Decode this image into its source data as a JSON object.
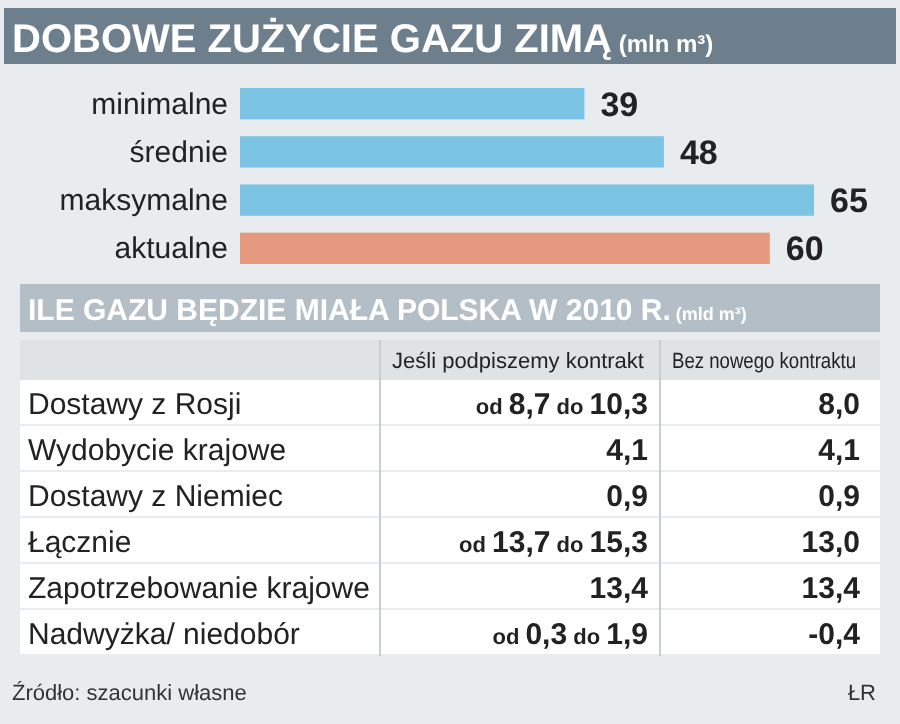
{
  "chart_data": [
    {
      "type": "bar",
      "orientation": "horizontal",
      "title": "DOBOWE ZUŻYCIE GAZU ZIMĄ (mln m³)",
      "categories": [
        "minimalne",
        "średnie",
        "maksymalne",
        "aktualne"
      ],
      "values": [
        39,
        48,
        65,
        60
      ],
      "colors": [
        "#7cc4e4",
        "#7cc4e4",
        "#7cc4e4",
        "#e59a80"
      ],
      "data_labels": true,
      "relative": false
    },
    {
      "type": "other",
      "title": "ILE GAZU BĘDZIE MIAŁA POLSKA W 2010 R. (mld m³)",
      "categories": [
        "Dostawy z Rosji",
        "Wydobycie krajowe",
        "Dostawy z Niemiec",
        "Łącznie",
        "Zapotrzebowanie krajowe",
        "Nadwyżka/ niedobór"
      ],
      "annotations": [
        "Jeśli podpiszemy kontrakt",
        "Bez nowego kontraktu",
        "od 8,7 do 10,3",
        "8,0",
        "4,1",
        "4,1",
        "0,9",
        "0,9",
        "od 13,7 do 15,3",
        "13,0",
        "13,4",
        "13,4",
        "od 0,3 do 1,9",
        "-0,4",
        "Źródło: szacunki własne",
        "ŁR"
      ]
    }
  ]
}
